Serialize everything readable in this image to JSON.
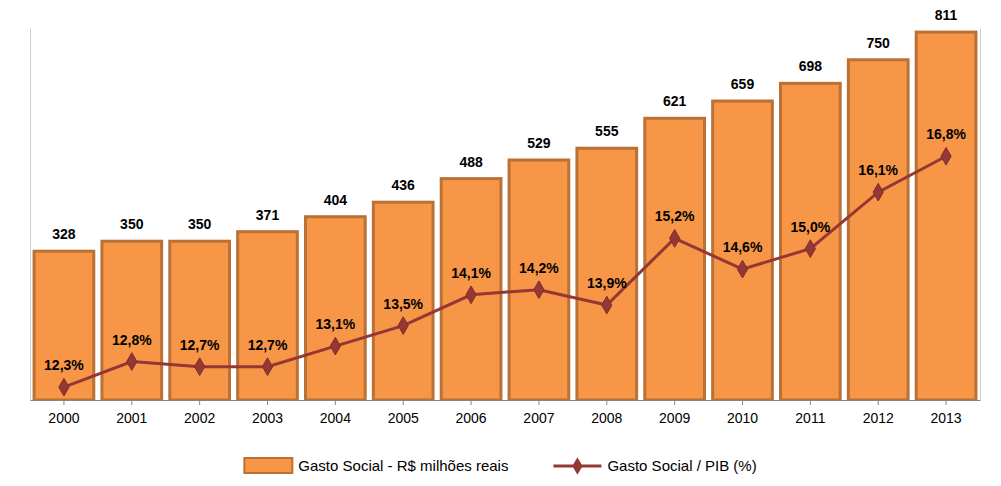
{
  "chart_data": {
    "type": "combo",
    "categories": [
      "2000",
      "2001",
      "2002",
      "2003",
      "2004",
      "2005",
      "2006",
      "2007",
      "2008",
      "2009",
      "2010",
      "2011",
      "2012",
      "2013"
    ],
    "series": [
      {
        "name": "Gasto Social - R$ milhões reais",
        "type": "bar",
        "color": "#f79646",
        "values": [
          328,
          350,
          350,
          371,
          404,
          436,
          488,
          529,
          555,
          621,
          659,
          698,
          750,
          811
        ]
      },
      {
        "name": "Gasto Social / PIB (%)",
        "type": "line",
        "axis": "y2",
        "color": "#953735",
        "marker": "diamond",
        "values": [
          12.3,
          12.8,
          12.7,
          12.7,
          13.1,
          13.5,
          14.1,
          14.2,
          13.9,
          15.2,
          14.6,
          15.0,
          16.1,
          16.8
        ],
        "value_labels": [
          "12,3%",
          "12,8%",
          "12,7%",
          "12,7%",
          "13,1%",
          "13,5%",
          "14,1%",
          "14,2%",
          "13,9%",
          "15,2%",
          "14,6%",
          "15,0%",
          "16,1%",
          "16,8%"
        ]
      }
    ],
    "ylim": [
      0,
      820
    ],
    "y2lim": [
      12.05,
      19.3
    ],
    "data_labels": true,
    "tick_labels": "x",
    "legend": "bottom"
  }
}
